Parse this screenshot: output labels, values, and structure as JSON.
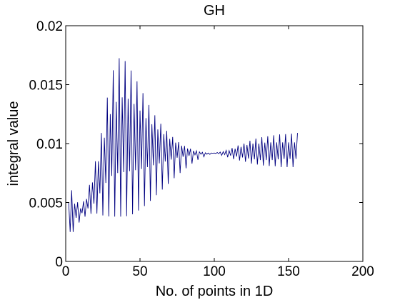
{
  "chart_data": {
    "type": "line",
    "title": "GH",
    "xlabel": "No. of points in 1D",
    "ylabel": "integral value",
    "xlim": [
      0,
      200
    ],
    "ylim": [
      0,
      0.02
    ],
    "xticks": [
      "0",
      "50",
      "100",
      "150",
      "200"
    ],
    "yticks": [
      "0",
      "0.005",
      "0.01",
      "0.015",
      "0.02"
    ],
    "grid": false,
    "legend": "none",
    "series": [
      {
        "color": "#000080",
        "x_range": [
          2,
          156
        ],
        "x": [
          2,
          5,
          10,
          15,
          20,
          25,
          30,
          35,
          40,
          45,
          50,
          55,
          60,
          65,
          70,
          75,
          80,
          85,
          90,
          95,
          100,
          105,
          110,
          115,
          120,
          125,
          130,
          135,
          140,
          145,
          150,
          155
        ],
        "envelope": [
          {
            "name": "outer_upper",
            "values": [
              0.0065,
              0.0058,
              0.0045,
              0.006,
              0.0085,
              0.0115,
              0.0155,
              0.0173,
              0.017,
              0.016,
              0.0148,
              0.0135,
              0.0124,
              0.0115,
              0.0108,
              0.0102,
              0.0098,
              0.0095,
              0.0093,
              0.0092,
              0.0092,
              0.0093,
              0.0095,
              0.0098,
              0.01,
              0.0103,
              0.0105,
              0.0106,
              0.0107,
              0.0108,
              0.0108,
              0.0109
            ]
          },
          {
            "name": "inner_upper",
            "values": [
              0.005,
              0.005,
              0.0045,
              0.0055,
              0.0075,
              0.01,
              0.0125,
              0.0138,
              0.014,
              0.0135,
              0.0128,
              0.012,
              0.0114,
              0.0109,
              0.0104,
              0.01,
              0.0097,
              0.0094,
              0.0093,
              0.0092,
              0.0092,
              0.0093,
              0.0094,
              0.0096,
              0.0098,
              0.01,
              0.01,
              0.0101,
              0.0101,
              0.0101,
              0.0101,
              0.0101
            ]
          },
          {
            "name": "inner_lower",
            "values": [
              0.002,
              0.0035,
              0.004,
              0.0045,
              0.005,
              0.0063,
              0.0072,
              0.0075,
              0.0076,
              0.0077,
              0.0078,
              0.008,
              0.0082,
              0.0084,
              0.0086,
              0.0088,
              0.0089,
              0.009,
              0.0091,
              0.0091,
              0.0092,
              0.0091,
              0.009,
              0.0089,
              0.0088,
              0.0087,
              0.0086,
              0.0086,
              0.0086,
              0.0087,
              0.0087,
              0.0087
            ]
          },
          {
            "name": "outer_lower",
            "values": [
              0.001,
              0.0025,
              0.0035,
              0.004,
              0.0041,
              0.0039,
              0.0038,
              0.0038,
              0.0038,
              0.004,
              0.0044,
              0.0049,
              0.0055,
              0.0061,
              0.0067,
              0.0073,
              0.0078,
              0.0083,
              0.0087,
              0.009,
              0.0092,
              0.009,
              0.0088,
              0.0086,
              0.0085,
              0.0083,
              0.0082,
              0.0081,
              0.0081,
              0.008,
              0.008,
              0.008
            ]
          }
        ]
      }
    ]
  }
}
